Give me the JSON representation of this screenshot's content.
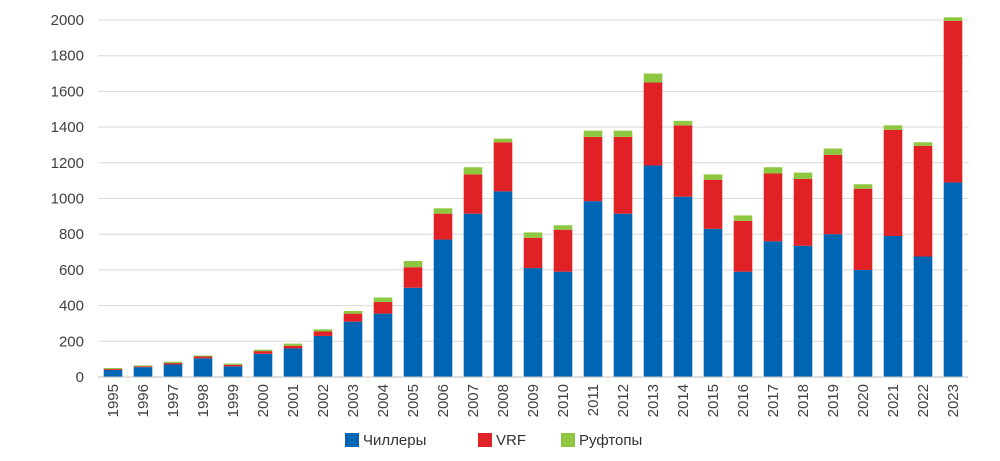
{
  "chart_data": {
    "type": "bar",
    "stacked": true,
    "title": "",
    "xlabel": "",
    "ylabel": "",
    "ylim": [
      0,
      2000
    ],
    "yticks": [
      0,
      200,
      400,
      600,
      800,
      1000,
      1200,
      1400,
      1600,
      1800,
      2000
    ],
    "grid": "horizontal",
    "legend_position": "bottom",
    "categories": [
      "1995",
      "1996",
      "1997",
      "1998",
      "1999",
      "2000",
      "2001",
      "2002",
      "2003",
      "2004",
      "2005",
      "2006",
      "2007",
      "2008",
      "2009",
      "2010",
      "2011",
      "2012",
      "2013",
      "2014",
      "2015",
      "2016",
      "2017",
      "2018",
      "2019",
      "2020",
      "2021",
      "2022",
      "2023"
    ],
    "series": [
      {
        "name": "Чиллеры",
        "color": "#0066b3",
        "values": [
          40,
          55,
          70,
          105,
          60,
          130,
          160,
          230,
          310,
          355,
          500,
          770,
          915,
          1040,
          610,
          590,
          985,
          915,
          1185,
          1010,
          830,
          590,
          760,
          735,
          800,
          600,
          790,
          675,
          1090
        ]
      },
      {
        "name": "VRF",
        "color": "#e02227",
        "values": [
          5,
          5,
          8,
          10,
          8,
          15,
          15,
          25,
          45,
          65,
          115,
          145,
          220,
          275,
          170,
          235,
          360,
          430,
          465,
          400,
          275,
          285,
          380,
          375,
          445,
          455,
          595,
          620,
          905
        ]
      },
      {
        "name": "Руфтопы",
        "color": "#8dc63f",
        "values": [
          5,
          5,
          7,
          5,
          7,
          8,
          12,
          12,
          15,
          25,
          35,
          30,
          40,
          20,
          30,
          25,
          35,
          35,
          50,
          25,
          30,
          30,
          35,
          35,
          35,
          25,
          25,
          20,
          20
        ]
      }
    ]
  }
}
